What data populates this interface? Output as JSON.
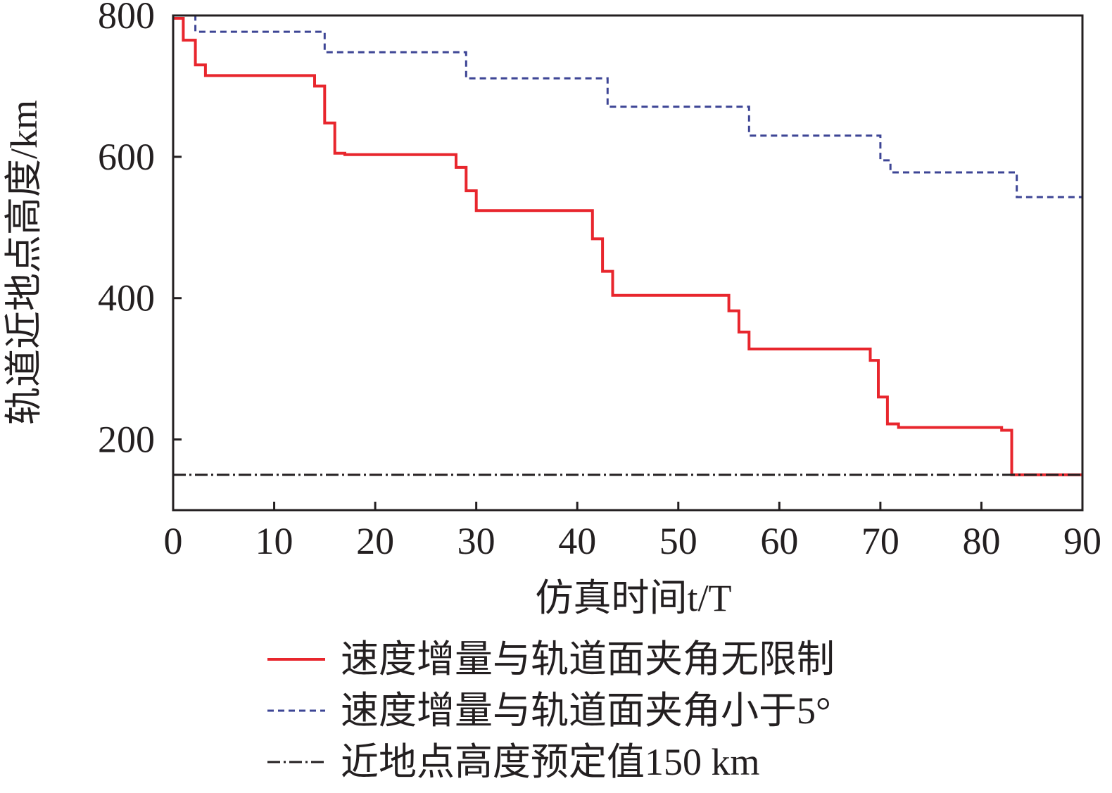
{
  "chart_data": {
    "type": "line",
    "xlabel": "仿真时间t/T",
    "ylabel": "轨道近地点高度/km",
    "xlim": [
      0,
      90
    ],
    "ylim": [
      100,
      800
    ],
    "xticks": [
      "0",
      "10",
      "20",
      "30",
      "40",
      "50",
      "60",
      "70",
      "80",
      "90"
    ],
    "yticks": [
      "200",
      "400",
      "600",
      "800"
    ],
    "legend_position": "bottom",
    "grid": false,
    "series": [
      {
        "name": "速度增量与轨道面夹角无限制",
        "color": "#e8262d",
        "dash": "solid",
        "step": true,
        "points": [
          [
            0,
            796
          ],
          [
            1,
            796
          ],
          [
            1,
            765
          ],
          [
            2.2,
            765
          ],
          [
            2.2,
            730
          ],
          [
            3.2,
            730
          ],
          [
            3.2,
            715
          ],
          [
            14,
            715
          ],
          [
            14,
            700
          ],
          [
            15,
            700
          ],
          [
            15,
            648
          ],
          [
            16,
            648
          ],
          [
            16,
            605
          ],
          [
            17,
            605
          ],
          [
            17,
            603
          ],
          [
            28,
            603
          ],
          [
            28,
            585
          ],
          [
            29,
            585
          ],
          [
            29,
            552
          ],
          [
            30,
            552
          ],
          [
            30,
            524
          ],
          [
            41.5,
            524
          ],
          [
            41.5,
            484
          ],
          [
            42.5,
            484
          ],
          [
            42.5,
            438
          ],
          [
            43.5,
            438
          ],
          [
            43.5,
            404
          ],
          [
            55,
            404
          ],
          [
            55,
            382
          ],
          [
            56,
            382
          ],
          [
            56,
            352
          ],
          [
            57,
            352
          ],
          [
            57,
            328
          ],
          [
            69,
            328
          ],
          [
            69,
            312
          ],
          [
            69.8,
            312
          ],
          [
            69.8,
            260
          ],
          [
            70.7,
            260
          ],
          [
            70.7,
            222
          ],
          [
            71.8,
            222
          ],
          [
            71.8,
            217
          ],
          [
            82,
            217
          ],
          [
            82,
            213
          ],
          [
            83,
            213
          ],
          [
            83,
            150
          ],
          [
            90,
            150
          ]
        ]
      },
      {
        "name": "速度增量与轨道面夹角小于5°",
        "color": "#3d4595",
        "dash": "dashed",
        "step": true,
        "points": [
          [
            0,
            800
          ],
          [
            2.2,
            800
          ],
          [
            2.2,
            777
          ],
          [
            15,
            777
          ],
          [
            15,
            748
          ],
          [
            29,
            748
          ],
          [
            29,
            711
          ],
          [
            43,
            711
          ],
          [
            43,
            671
          ],
          [
            57,
            671
          ],
          [
            57,
            630
          ],
          [
            70,
            630
          ],
          [
            70,
            595
          ],
          [
            71,
            595
          ],
          [
            71,
            578
          ],
          [
            83.5,
            578
          ],
          [
            83.5,
            543
          ],
          [
            90,
            543
          ]
        ]
      },
      {
        "name": "近地点高度预定值150 km",
        "color": "#231f20",
        "dash": "dashdot",
        "step": false,
        "points": [
          [
            0,
            150
          ],
          [
            90,
            150
          ]
        ]
      }
    ]
  },
  "legend": {
    "items": [
      "速度增量与轨道面夹角无限制",
      "速度增量与轨道面夹角小于5°",
      "近地点高度预定值150 km"
    ]
  }
}
